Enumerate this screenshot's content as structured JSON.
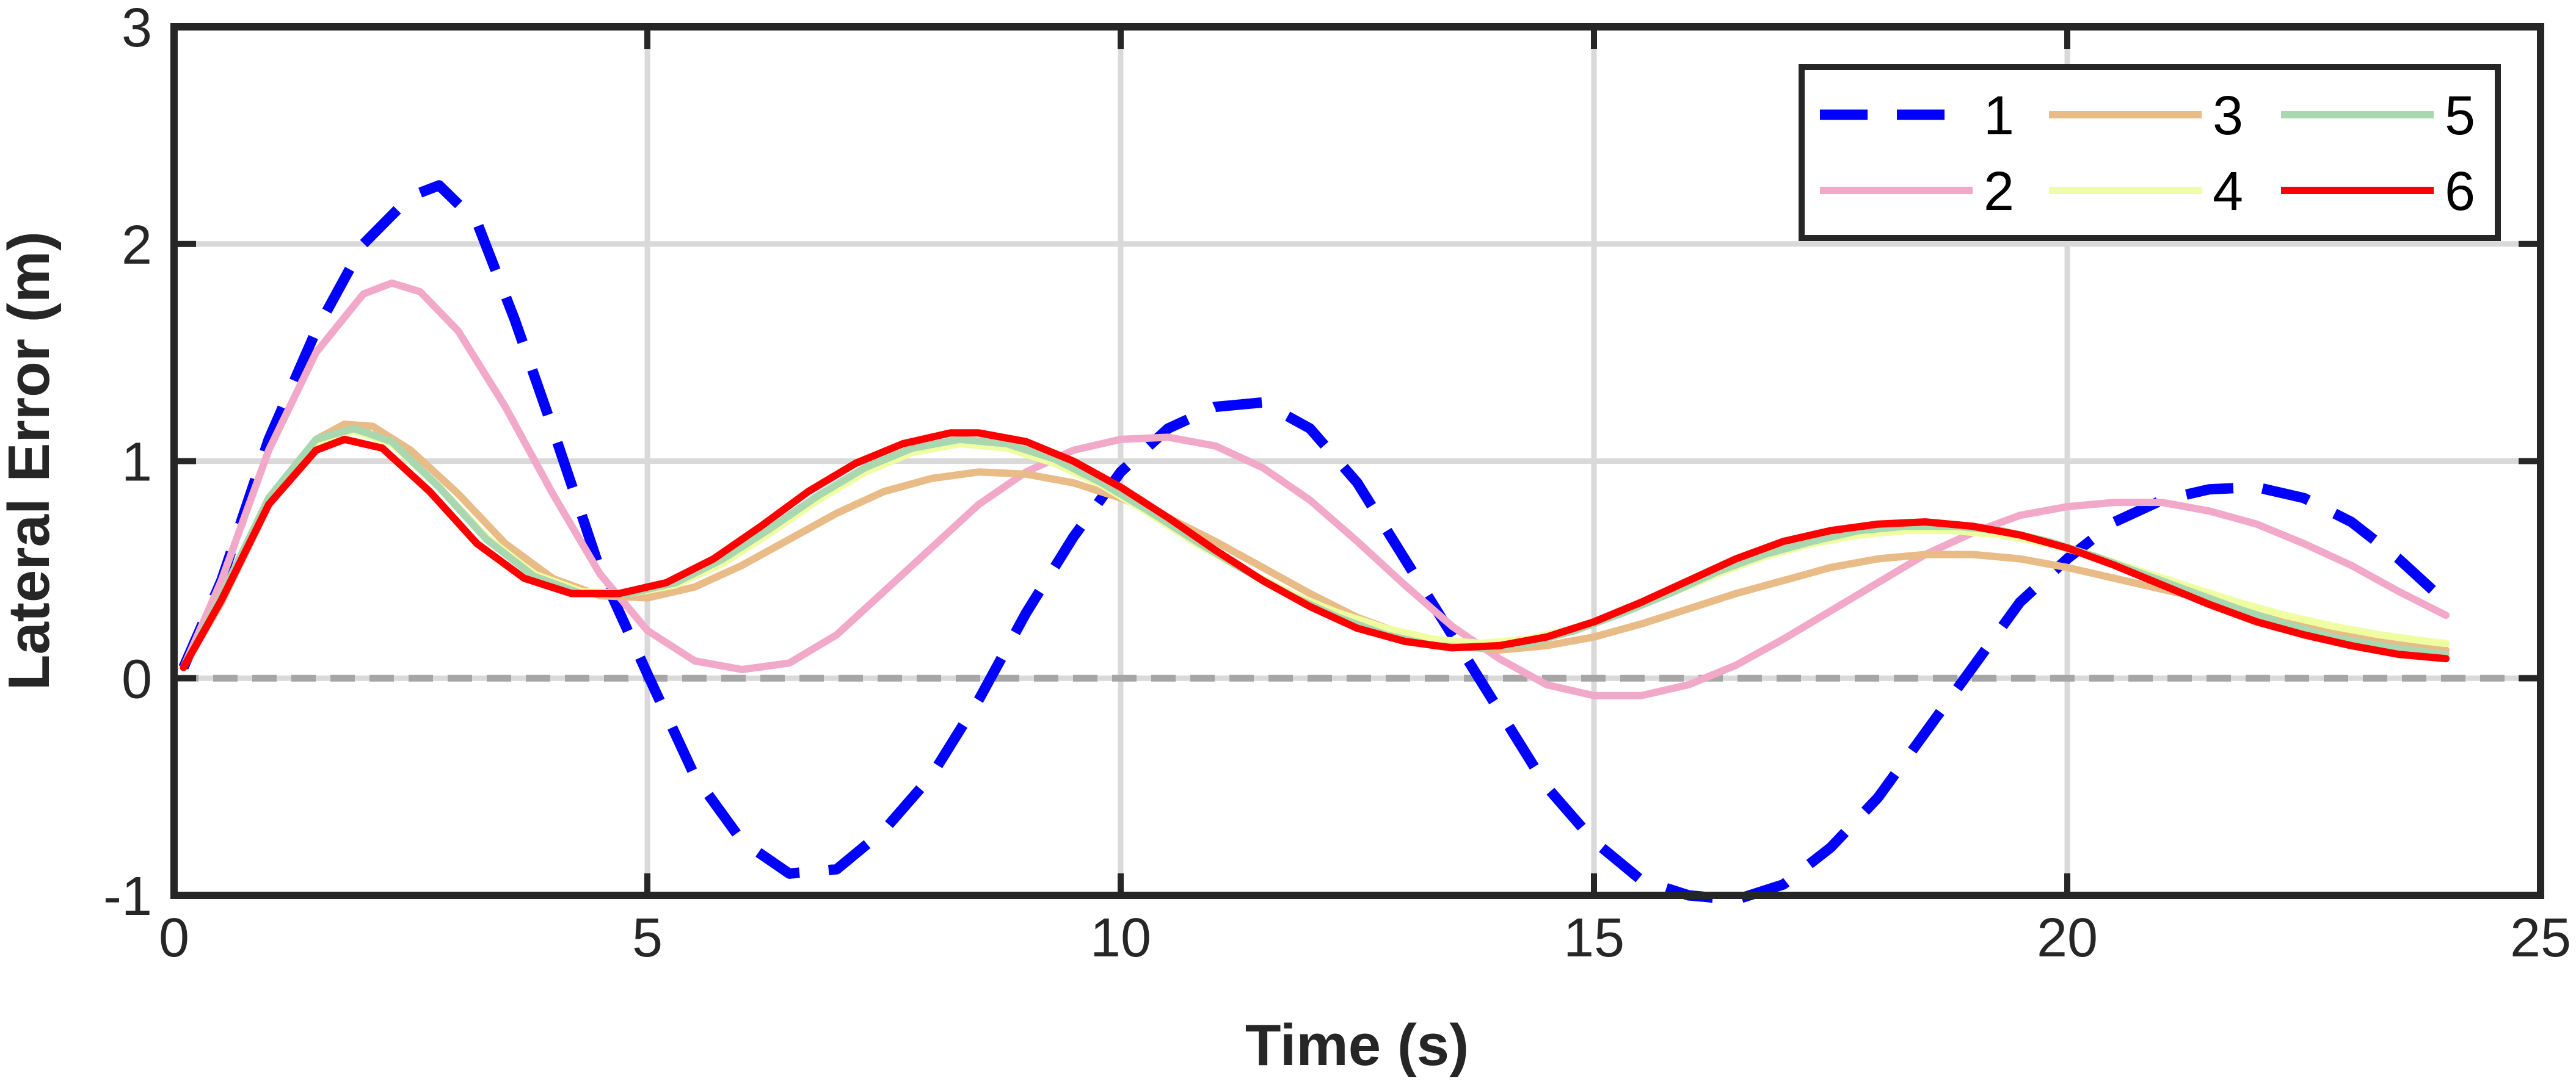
{
  "chart_data": {
    "type": "line",
    "title": "",
    "xlabel": "Time (s)",
    "ylabel": "Lateral Error (m)",
    "xlim": [
      0,
      25
    ],
    "ylim": [
      -1,
      3
    ],
    "xticks": [
      0,
      5,
      10,
      15,
      20,
      25
    ],
    "yticks": [
      -1,
      0,
      1,
      2,
      3
    ],
    "grid": true,
    "legend": {
      "position": "top-right",
      "columns": 3
    },
    "reference_line": {
      "y": 0,
      "style": "dashed",
      "color": "#a6a6a6"
    },
    "series": [
      {
        "name": "1",
        "color": "#0000ff",
        "style": "dashed",
        "points": [
          [
            0.1,
            0.05
          ],
          [
            0.5,
            0.45
          ],
          [
            1,
            1.1
          ],
          [
            1.5,
            1.6
          ],
          [
            2,
            2.0
          ],
          [
            2.5,
            2.22
          ],
          [
            2.8,
            2.27
          ],
          [
            3.2,
            2.1
          ],
          [
            3.6,
            1.65
          ],
          [
            4,
            1.15
          ],
          [
            4.5,
            0.5
          ],
          [
            5,
            0.02
          ],
          [
            5.5,
            -0.45
          ],
          [
            6,
            -0.75
          ],
          [
            6.5,
            -0.9
          ],
          [
            7,
            -0.88
          ],
          [
            7.5,
            -0.7
          ],
          [
            8,
            -0.45
          ],
          [
            8.5,
            -0.1
          ],
          [
            9,
            0.3
          ],
          [
            9.5,
            0.65
          ],
          [
            10,
            0.95
          ],
          [
            10.5,
            1.15
          ],
          [
            11,
            1.25
          ],
          [
            11.5,
            1.27
          ],
          [
            12,
            1.15
          ],
          [
            12.5,
            0.9
          ],
          [
            13,
            0.55
          ],
          [
            13.5,
            0.2
          ],
          [
            14,
            -0.15
          ],
          [
            14.5,
            -0.5
          ],
          [
            15,
            -0.75
          ],
          [
            15.5,
            -0.93
          ],
          [
            16,
            -1.0
          ],
          [
            16.5,
            -1.02
          ],
          [
            17,
            -0.95
          ],
          [
            17.5,
            -0.78
          ],
          [
            18,
            -0.55
          ],
          [
            18.5,
            -0.25
          ],
          [
            19,
            0.05
          ],
          [
            19.5,
            0.35
          ],
          [
            20,
            0.55
          ],
          [
            20.5,
            0.72
          ],
          [
            21,
            0.82
          ],
          [
            21.5,
            0.87
          ],
          [
            22,
            0.88
          ],
          [
            22.5,
            0.83
          ],
          [
            23,
            0.72
          ],
          [
            23.5,
            0.55
          ],
          [
            24,
            0.35
          ]
        ]
      },
      {
        "name": "2",
        "color": "#f2a9c9",
        "style": "solid",
        "points": [
          [
            0.1,
            0.05
          ],
          [
            0.5,
            0.45
          ],
          [
            1,
            1.05
          ],
          [
            1.5,
            1.5
          ],
          [
            2,
            1.77
          ],
          [
            2.3,
            1.82
          ],
          [
            2.6,
            1.78
          ],
          [
            3,
            1.6
          ],
          [
            3.5,
            1.25
          ],
          [
            4,
            0.85
          ],
          [
            4.5,
            0.48
          ],
          [
            5,
            0.22
          ],
          [
            5.5,
            0.08
          ],
          [
            6,
            0.04
          ],
          [
            6.5,
            0.07
          ],
          [
            7,
            0.2
          ],
          [
            7.5,
            0.4
          ],
          [
            8,
            0.6
          ],
          [
            8.5,
            0.8
          ],
          [
            9,
            0.95
          ],
          [
            9.5,
            1.05
          ],
          [
            10,
            1.1
          ],
          [
            10.5,
            1.11
          ],
          [
            11,
            1.07
          ],
          [
            11.5,
            0.97
          ],
          [
            12,
            0.82
          ],
          [
            12.5,
            0.63
          ],
          [
            13,
            0.43
          ],
          [
            13.5,
            0.24
          ],
          [
            14,
            0.09
          ],
          [
            14.5,
            -0.03
          ],
          [
            15,
            -0.08
          ],
          [
            15.5,
            -0.08
          ],
          [
            16,
            -0.03
          ],
          [
            16.5,
            0.06
          ],
          [
            17,
            0.18
          ],
          [
            17.5,
            0.31
          ],
          [
            18,
            0.44
          ],
          [
            18.5,
            0.57
          ],
          [
            19,
            0.67
          ],
          [
            19.5,
            0.75
          ],
          [
            20,
            0.79
          ],
          [
            20.5,
            0.81
          ],
          [
            21,
            0.81
          ],
          [
            21.5,
            0.77
          ],
          [
            22,
            0.71
          ],
          [
            22.5,
            0.62
          ],
          [
            23,
            0.52
          ],
          [
            23.5,
            0.4
          ],
          [
            24,
            0.29
          ]
        ]
      },
      {
        "name": "3",
        "color": "#e9bb86",
        "style": "solid",
        "points": [
          [
            0.1,
            0.05
          ],
          [
            0.5,
            0.35
          ],
          [
            1,
            0.8
          ],
          [
            1.5,
            1.1
          ],
          [
            1.8,
            1.17
          ],
          [
            2.1,
            1.16
          ],
          [
            2.5,
            1.05
          ],
          [
            3,
            0.85
          ],
          [
            3.5,
            0.62
          ],
          [
            4,
            0.46
          ],
          [
            4.5,
            0.38
          ],
          [
            5,
            0.37
          ],
          [
            5.5,
            0.42
          ],
          [
            6,
            0.52
          ],
          [
            6.5,
            0.64
          ],
          [
            7,
            0.76
          ],
          [
            7.5,
            0.86
          ],
          [
            8,
            0.92
          ],
          [
            8.5,
            0.95
          ],
          [
            9,
            0.94
          ],
          [
            9.5,
            0.9
          ],
          [
            10,
            0.83
          ],
          [
            10.5,
            0.74
          ],
          [
            11,
            0.63
          ],
          [
            11.5,
            0.51
          ],
          [
            12,
            0.39
          ],
          [
            12.5,
            0.28
          ],
          [
            13,
            0.2
          ],
          [
            13.5,
            0.15
          ],
          [
            14,
            0.13
          ],
          [
            14.5,
            0.15
          ],
          [
            15,
            0.19
          ],
          [
            15.5,
            0.25
          ],
          [
            16,
            0.32
          ],
          [
            16.5,
            0.39
          ],
          [
            17,
            0.45
          ],
          [
            17.5,
            0.51
          ],
          [
            18,
            0.55
          ],
          [
            18.5,
            0.57
          ],
          [
            19,
            0.57
          ],
          [
            19.5,
            0.55
          ],
          [
            20,
            0.51
          ],
          [
            20.5,
            0.46
          ],
          [
            21,
            0.41
          ],
          [
            21.5,
            0.36
          ],
          [
            22,
            0.31
          ],
          [
            22.5,
            0.25
          ],
          [
            23,
            0.2
          ],
          [
            23.5,
            0.16
          ],
          [
            24,
            0.13
          ]
        ]
      },
      {
        "name": "4",
        "color": "#eefea0",
        "style": "solid",
        "points": [
          [
            0.1,
            0.05
          ],
          [
            0.5,
            0.38
          ],
          [
            1,
            0.82
          ],
          [
            1.5,
            1.08
          ],
          [
            1.9,
            1.14
          ],
          [
            2.3,
            1.08
          ],
          [
            2.8,
            0.88
          ],
          [
            3.3,
            0.65
          ],
          [
            3.8,
            0.48
          ],
          [
            4.3,
            0.4
          ],
          [
            4.8,
            0.39
          ],
          [
            5.3,
            0.43
          ],
          [
            5.8,
            0.53
          ],
          [
            6.3,
            0.67
          ],
          [
            6.8,
            0.82
          ],
          [
            7.3,
            0.95
          ],
          [
            7.8,
            1.04
          ],
          [
            8.3,
            1.08
          ],
          [
            8.8,
            1.06
          ],
          [
            9.3,
            0.99
          ],
          [
            9.8,
            0.89
          ],
          [
            10.3,
            0.76
          ],
          [
            10.8,
            0.62
          ],
          [
            11.3,
            0.5
          ],
          [
            11.8,
            0.39
          ],
          [
            12.3,
            0.3
          ],
          [
            12.8,
            0.23
          ],
          [
            13.3,
            0.18
          ],
          [
            13.8,
            0.16
          ],
          [
            14.3,
            0.18
          ],
          [
            14.8,
            0.23
          ],
          [
            15.3,
            0.3
          ],
          [
            15.8,
            0.39
          ],
          [
            16.3,
            0.48
          ],
          [
            16.8,
            0.56
          ],
          [
            17.3,
            0.62
          ],
          [
            17.8,
            0.66
          ],
          [
            18.3,
            0.68
          ],
          [
            18.8,
            0.68
          ],
          [
            19.3,
            0.66
          ],
          [
            19.8,
            0.62
          ],
          [
            20.3,
            0.56
          ],
          [
            20.8,
            0.49
          ],
          [
            21.3,
            0.42
          ],
          [
            21.8,
            0.35
          ],
          [
            22.3,
            0.29
          ],
          [
            22.8,
            0.24
          ],
          [
            23.3,
            0.2
          ],
          [
            23.8,
            0.17
          ],
          [
            24,
            0.16
          ]
        ]
      },
      {
        "name": "5",
        "color": "#a8d7b0",
        "style": "solid",
        "points": [
          [
            0.1,
            0.05
          ],
          [
            0.5,
            0.38
          ],
          [
            1,
            0.83
          ],
          [
            1.5,
            1.1
          ],
          [
            1.9,
            1.15
          ],
          [
            2.3,
            1.09
          ],
          [
            2.8,
            0.88
          ],
          [
            3.3,
            0.64
          ],
          [
            3.8,
            0.47
          ],
          [
            4.3,
            0.39
          ],
          [
            4.8,
            0.39
          ],
          [
            5.3,
            0.44
          ],
          [
            5.8,
            0.55
          ],
          [
            6.3,
            0.69
          ],
          [
            6.8,
            0.84
          ],
          [
            7.3,
            0.97
          ],
          [
            7.8,
            1.06
          ],
          [
            8.3,
            1.1
          ],
          [
            8.8,
            1.08
          ],
          [
            9.3,
            1.01
          ],
          [
            9.8,
            0.9
          ],
          [
            10.3,
            0.77
          ],
          [
            10.8,
            0.63
          ],
          [
            11.3,
            0.5
          ],
          [
            11.8,
            0.38
          ],
          [
            12.3,
            0.28
          ],
          [
            12.8,
            0.2
          ],
          [
            13.3,
            0.15
          ],
          [
            13.8,
            0.14
          ],
          [
            14.3,
            0.16
          ],
          [
            14.8,
            0.22
          ],
          [
            15.3,
            0.3
          ],
          [
            15.8,
            0.39
          ],
          [
            16.3,
            0.49
          ],
          [
            16.8,
            0.57
          ],
          [
            17.3,
            0.63
          ],
          [
            17.8,
            0.68
          ],
          [
            18.3,
            0.7
          ],
          [
            18.8,
            0.7
          ],
          [
            19.3,
            0.68
          ],
          [
            19.8,
            0.63
          ],
          [
            20.3,
            0.56
          ],
          [
            20.8,
            0.48
          ],
          [
            21.3,
            0.4
          ],
          [
            21.8,
            0.32
          ],
          [
            22.3,
            0.25
          ],
          [
            22.8,
            0.19
          ],
          [
            23.3,
            0.15
          ],
          [
            23.8,
            0.12
          ],
          [
            24,
            0.11
          ]
        ]
      },
      {
        "name": "6",
        "color": "#ff0000",
        "style": "solid",
        "points": [
          [
            0.1,
            0.05
          ],
          [
            0.5,
            0.36
          ],
          [
            1,
            0.8
          ],
          [
            1.5,
            1.05
          ],
          [
            1.8,
            1.1
          ],
          [
            2.2,
            1.06
          ],
          [
            2.7,
            0.86
          ],
          [
            3.2,
            0.62
          ],
          [
            3.7,
            0.46
          ],
          [
            4.2,
            0.39
          ],
          [
            4.7,
            0.39
          ],
          [
            5.2,
            0.44
          ],
          [
            5.7,
            0.55
          ],
          [
            6.2,
            0.7
          ],
          [
            6.7,
            0.86
          ],
          [
            7.2,
            0.99
          ],
          [
            7.7,
            1.08
          ],
          [
            8.2,
            1.13
          ],
          [
            8.5,
            1.13
          ],
          [
            9,
            1.09
          ],
          [
            9.5,
            1.0
          ],
          [
            10,
            0.88
          ],
          [
            10.5,
            0.74
          ],
          [
            11,
            0.59
          ],
          [
            11.5,
            0.45
          ],
          [
            12,
            0.33
          ],
          [
            12.5,
            0.23
          ],
          [
            13,
            0.17
          ],
          [
            13.5,
            0.14
          ],
          [
            14,
            0.15
          ],
          [
            14.5,
            0.19
          ],
          [
            15,
            0.26
          ],
          [
            15.5,
            0.35
          ],
          [
            16,
            0.45
          ],
          [
            16.5,
            0.55
          ],
          [
            17,
            0.63
          ],
          [
            17.5,
            0.68
          ],
          [
            18,
            0.71
          ],
          [
            18.5,
            0.72
          ],
          [
            19,
            0.7
          ],
          [
            19.5,
            0.66
          ],
          [
            20,
            0.6
          ],
          [
            20.5,
            0.52
          ],
          [
            21,
            0.43
          ],
          [
            21.5,
            0.34
          ],
          [
            22,
            0.26
          ],
          [
            22.5,
            0.2
          ],
          [
            23,
            0.15
          ],
          [
            23.5,
            0.11
          ],
          [
            24,
            0.09
          ]
        ]
      }
    ]
  }
}
